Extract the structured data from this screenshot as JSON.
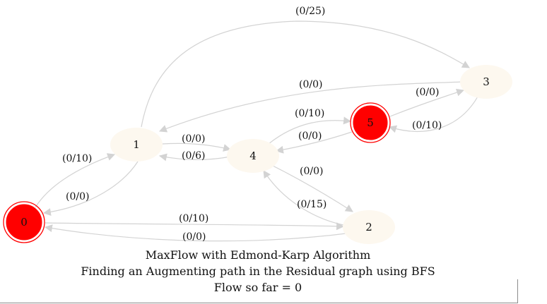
{
  "caption": {
    "line1": "MaxFlow with Edmond-Karp Algorithm",
    "line2": "Finding an Augmenting path in the Residual graph using BFS",
    "line3": "Flow so far = 0"
  },
  "colors": {
    "source_sink_fill": "#ff0000",
    "node_fill": "#fdf8ef",
    "edge": "#d3d3d3",
    "text": "#111111"
  },
  "nodes": [
    {
      "id": "0",
      "label": "0",
      "role": "source"
    },
    {
      "id": "1",
      "label": "1",
      "role": "intermediate"
    },
    {
      "id": "2",
      "label": "2",
      "role": "intermediate"
    },
    {
      "id": "3",
      "label": "3",
      "role": "intermediate"
    },
    {
      "id": "4",
      "label": "4",
      "role": "intermediate"
    },
    {
      "id": "5",
      "label": "5",
      "role": "sink"
    }
  ],
  "edges": [
    {
      "from": "1",
      "to": "3",
      "label": "(0/25)"
    },
    {
      "from": "3",
      "to": "1",
      "label": "(0/0)"
    },
    {
      "from": "5",
      "to": "3",
      "label": "(0/0)"
    },
    {
      "from": "3",
      "to": "5",
      "label": "(0/10)"
    },
    {
      "from": "4",
      "to": "5",
      "label": "(0/10)"
    },
    {
      "from": "5",
      "to": "4",
      "label": "(0/0)"
    },
    {
      "from": "1",
      "to": "4",
      "label": "(0/0)"
    },
    {
      "from": "4",
      "to": "1",
      "label": "(0/6)"
    },
    {
      "from": "0",
      "to": "1",
      "label": "(0/10)"
    },
    {
      "from": "1",
      "to": "0",
      "label": "(0/0)"
    },
    {
      "from": "4",
      "to": "2",
      "label": "(0/0)"
    },
    {
      "from": "2",
      "to": "4",
      "label": "(0/15)"
    },
    {
      "from": "0",
      "to": "2",
      "label": "(0/10)"
    },
    {
      "from": "2",
      "to": "0",
      "label": "(0/0)"
    }
  ]
}
